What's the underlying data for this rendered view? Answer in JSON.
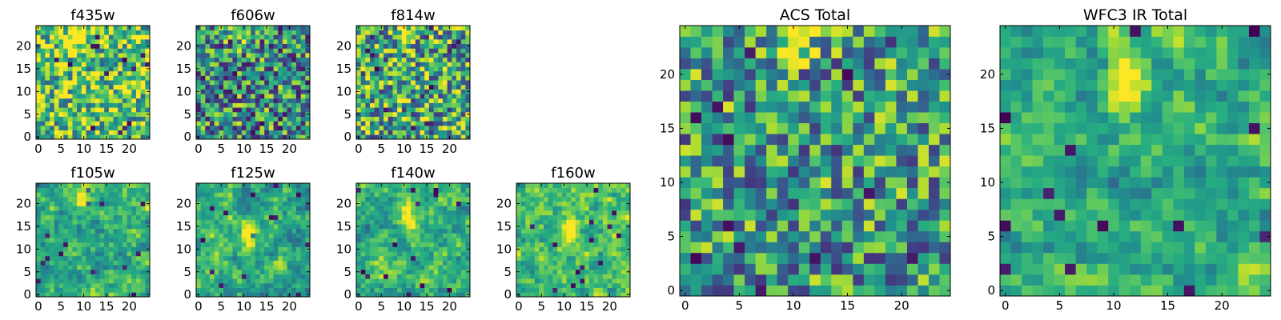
{
  "chart_data": [
    {
      "type": "heatmap",
      "title": "f435w",
      "grid": [
        25,
        25
      ],
      "colormap": "viridis",
      "value_range": [
        0,
        1
      ],
      "hotspot": {
        "col": 9.5,
        "row": 22.5
      },
      "x_ticks": [
        "0",
        "5",
        "10",
        "15",
        "20"
      ],
      "y_ticks": [
        "0",
        "5",
        "10",
        "15",
        "20"
      ],
      "xlim": [
        -0.5,
        24.5
      ],
      "ylim": [
        -0.5,
        24.5
      ],
      "seed": 11,
      "base": 0.72,
      "noise": 0.5,
      "smooth": 0
    },
    {
      "type": "heatmap",
      "title": "f606w",
      "grid": [
        25,
        25
      ],
      "colormap": "viridis",
      "value_range": [
        0,
        1
      ],
      "hotspot": {
        "col": 10,
        "row": 23
      },
      "x_ticks": [
        "0",
        "5",
        "10",
        "15",
        "20"
      ],
      "y_ticks": [
        "0",
        "5",
        "10",
        "15",
        "20"
      ],
      "xlim": [
        -0.5,
        24.5
      ],
      "ylim": [
        -0.5,
        24.5
      ],
      "seed": 23,
      "base": 0.5,
      "noise": 0.55,
      "smooth": 0
    },
    {
      "type": "heatmap",
      "title": "f814w",
      "grid": [
        25,
        25
      ],
      "colormap": "viridis",
      "value_range": [
        0,
        1
      ],
      "hotspot": {
        "col": 10,
        "row": 22.5
      },
      "x_ticks": [
        "0",
        "5",
        "10",
        "15",
        "20"
      ],
      "y_ticks": [
        "0",
        "5",
        "10",
        "15",
        "20"
      ],
      "xlim": [
        -0.5,
        24.5
      ],
      "ylim": [
        -0.5,
        24.5
      ],
      "seed": 37,
      "base": 0.6,
      "noise": 0.55,
      "smooth": 0
    },
    {
      "type": "heatmap",
      "title": "f105w",
      "grid": [
        25,
        25
      ],
      "colormap": "viridis",
      "value_range": [
        0,
        1
      ],
      "hotspot": {
        "col": 10,
        "row": 22
      },
      "x_ticks": [
        "0",
        "5",
        "10",
        "15",
        "20"
      ],
      "y_ticks": [
        "0",
        "5",
        "10",
        "15",
        "20"
      ],
      "xlim": [
        -0.5,
        24.5
      ],
      "ylim": [
        -0.5,
        24.5
      ],
      "seed": 41,
      "base": 0.62,
      "noise": 0.5,
      "smooth": 1
    },
    {
      "type": "heatmap",
      "title": "f125w",
      "grid": [
        25,
        25
      ],
      "colormap": "viridis",
      "value_range": [
        0,
        1
      ],
      "hotspot": {
        "col": 11,
        "row": 13
      },
      "x_ticks": [
        "0",
        "5",
        "10",
        "15",
        "20"
      ],
      "y_ticks": [
        "0",
        "5",
        "10",
        "15",
        "20"
      ],
      "xlim": [
        -0.5,
        24.5
      ],
      "ylim": [
        -0.5,
        24.5
      ],
      "seed": 53,
      "base": 0.62,
      "noise": 0.5,
      "smooth": 1
    },
    {
      "type": "heatmap",
      "title": "f140w",
      "grid": [
        25,
        25
      ],
      "colormap": "viridis",
      "value_range": [
        0,
        1
      ],
      "hotspot": {
        "col": 11,
        "row": 17
      },
      "x_ticks": [
        "0",
        "5",
        "10",
        "15",
        "20"
      ],
      "y_ticks": [
        "0",
        "5",
        "10",
        "15",
        "20"
      ],
      "xlim": [
        -0.5,
        24.5
      ],
      "ylim": [
        -0.5,
        24.5
      ],
      "seed": 67,
      "base": 0.65,
      "noise": 0.5,
      "smooth": 1
    },
    {
      "type": "heatmap",
      "title": "f160w",
      "grid": [
        25,
        25
      ],
      "colormap": "viridis",
      "value_range": [
        0,
        1
      ],
      "hotspot": {
        "col": 11,
        "row": 14
      },
      "x_ticks": [
        "0",
        "5",
        "10",
        "15",
        "20"
      ],
      "y_ticks": [
        "0",
        "5",
        "10",
        "15",
        "20"
      ],
      "xlim": [
        -0.5,
        24.5
      ],
      "ylim": [
        -0.5,
        24.5
      ],
      "seed": 79,
      "base": 0.7,
      "noise": 0.45,
      "smooth": 1
    },
    {
      "type": "heatmap",
      "title": "ACS Total",
      "grid": [
        25,
        25
      ],
      "colormap": "viridis",
      "value_range": [
        0,
        1
      ],
      "hotspot": {
        "col": 10,
        "row": 22.5
      },
      "x_ticks": [
        "0",
        "5",
        "10",
        "15",
        "20"
      ],
      "y_ticks": [
        "0",
        "5",
        "10",
        "15",
        "20"
      ],
      "xlim": [
        -0.5,
        24.5
      ],
      "ylim": [
        -0.5,
        24.5
      ],
      "seed": 91,
      "base": 0.55,
      "noise": 0.5,
      "smooth": 0
    },
    {
      "type": "heatmap",
      "title": "WFC3 IR Total",
      "grid": [
        25,
        25
      ],
      "colormap": "viridis",
      "value_range": [
        0,
        1
      ],
      "hotspot": {
        "col": 11,
        "row": 19
      },
      "x_ticks": [
        "0",
        "5",
        "10",
        "15",
        "20"
      ],
      "y_ticks": [
        "0",
        "5",
        "10",
        "15",
        "20"
      ],
      "xlim": [
        -0.5,
        24.5
      ],
      "ylim": [
        -0.5,
        24.5
      ],
      "seed": 103,
      "base": 0.6,
      "noise": 0.45,
      "smooth": 1
    }
  ]
}
